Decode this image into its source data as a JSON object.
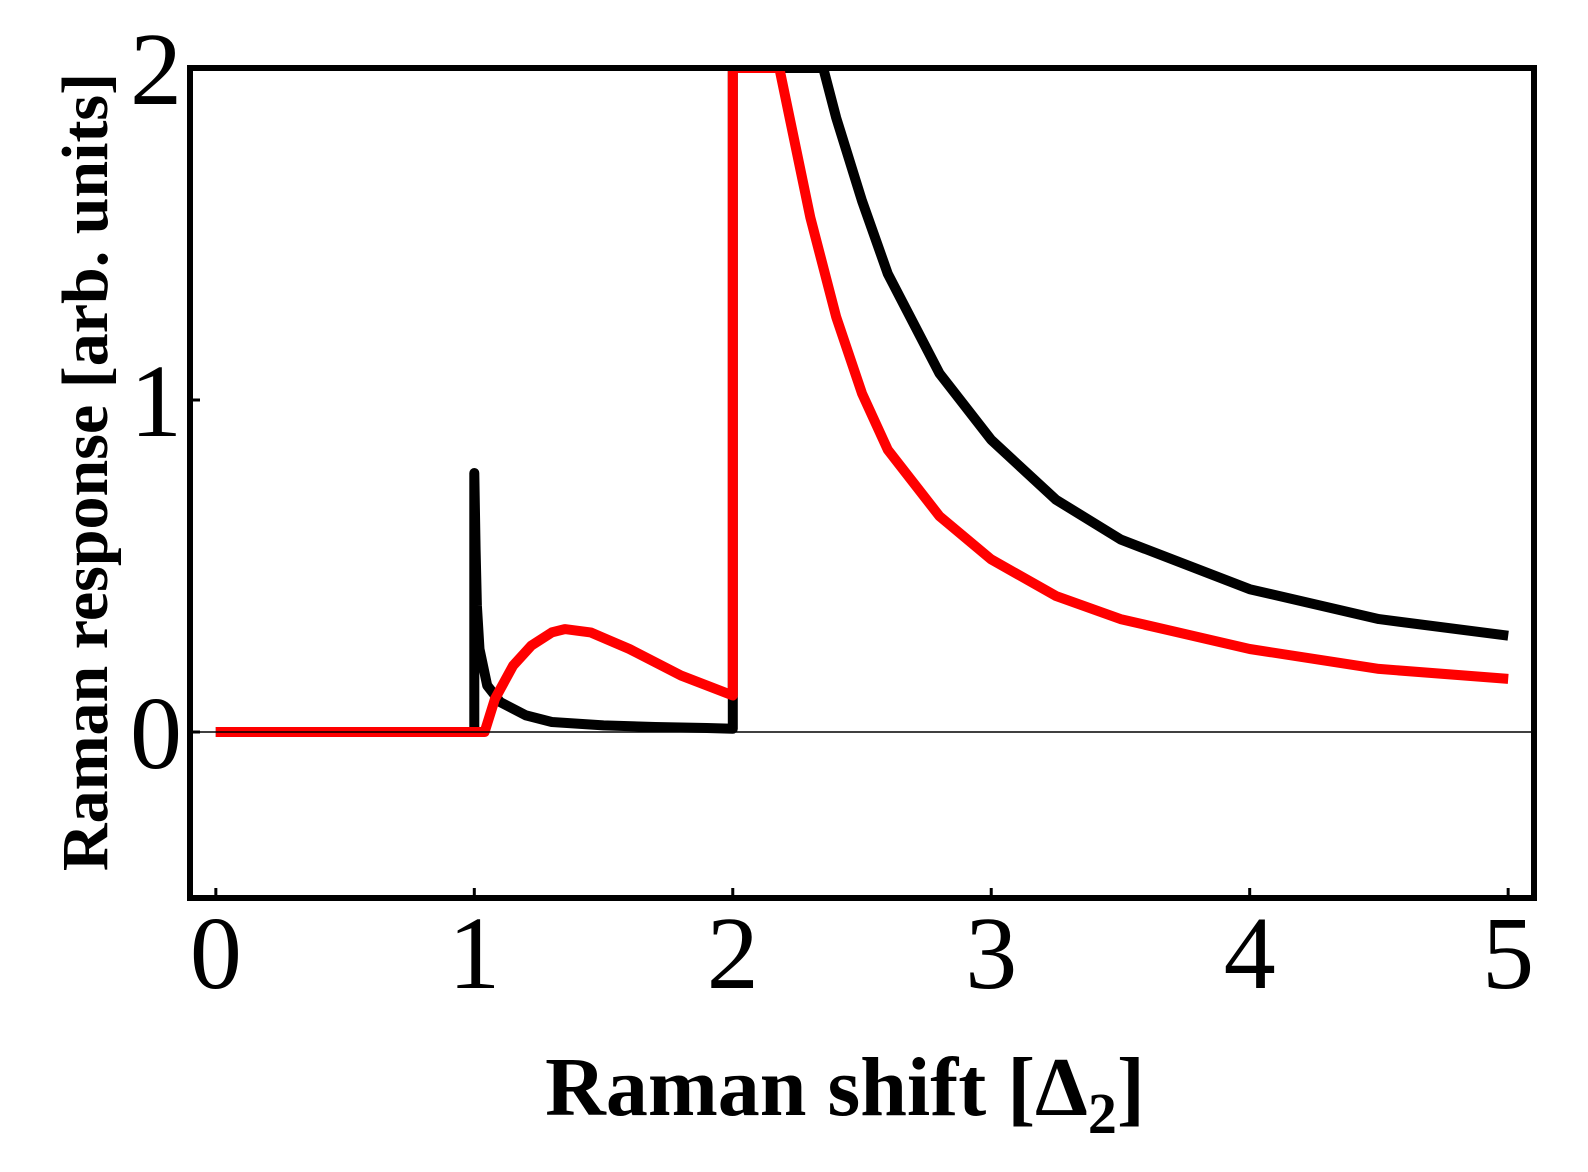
{
  "chart_data": {
    "type": "line",
    "title": "",
    "xlabel": "Raman shift [Δ",
    "xlabel_subscript": "2",
    "xlabel_close": "]",
    "ylabel": "Raman response [arb. units]",
    "xlim": [
      -0.1,
      5.1
    ],
    "ylim": [
      -0.5,
      2
    ],
    "xticks": [
      "0",
      "1",
      "2",
      "3",
      "4",
      "5"
    ],
    "xtick_values": [
      0,
      1,
      2,
      3,
      4,
      5
    ],
    "yticks": [
      "0",
      "1",
      "2"
    ],
    "ytick_values": [
      0,
      1,
      2
    ],
    "zero_line": true,
    "grid": false,
    "legend": "none",
    "colors": {
      "black": "#000000",
      "red": "#ff0000"
    },
    "series": [
      {
        "color": "#000000",
        "x": [
          0,
          0.5,
          1.0,
          1.0,
          1.005,
          1.01,
          1.02,
          1.05,
          1.1,
          1.2,
          1.3,
          1.5,
          1.7,
          1.9,
          2.0,
          2.0,
          2.35,
          2.4,
          2.5,
          2.6,
          2.8,
          3.0,
          3.25,
          3.5,
          4.0,
          4.5,
          5.0
        ],
        "y": [
          0,
          0,
          0,
          0.78,
          0.55,
          0.38,
          0.25,
          0.14,
          0.09,
          0.05,
          0.03,
          0.02,
          0.015,
          0.012,
          0.01,
          2.0,
          2.0,
          1.85,
          1.6,
          1.38,
          1.08,
          0.88,
          0.7,
          0.58,
          0.43,
          0.34,
          0.29
        ]
      },
      {
        "color": "#ff0000",
        "x": [
          0,
          0.5,
          1.04,
          1.08,
          1.15,
          1.22,
          1.3,
          1.35,
          1.45,
          1.6,
          1.8,
          2.0,
          2.0,
          2.18,
          2.3,
          2.4,
          2.5,
          2.6,
          2.8,
          3.0,
          3.25,
          3.5,
          4.0,
          4.5,
          5.0
        ],
        "y": [
          0,
          0,
          0,
          0.1,
          0.2,
          0.26,
          0.3,
          0.31,
          0.3,
          0.25,
          0.17,
          0.11,
          2.0,
          2.0,
          1.55,
          1.25,
          1.02,
          0.85,
          0.65,
          0.52,
          0.41,
          0.34,
          0.25,
          0.19,
          0.16
        ]
      }
    ]
  }
}
